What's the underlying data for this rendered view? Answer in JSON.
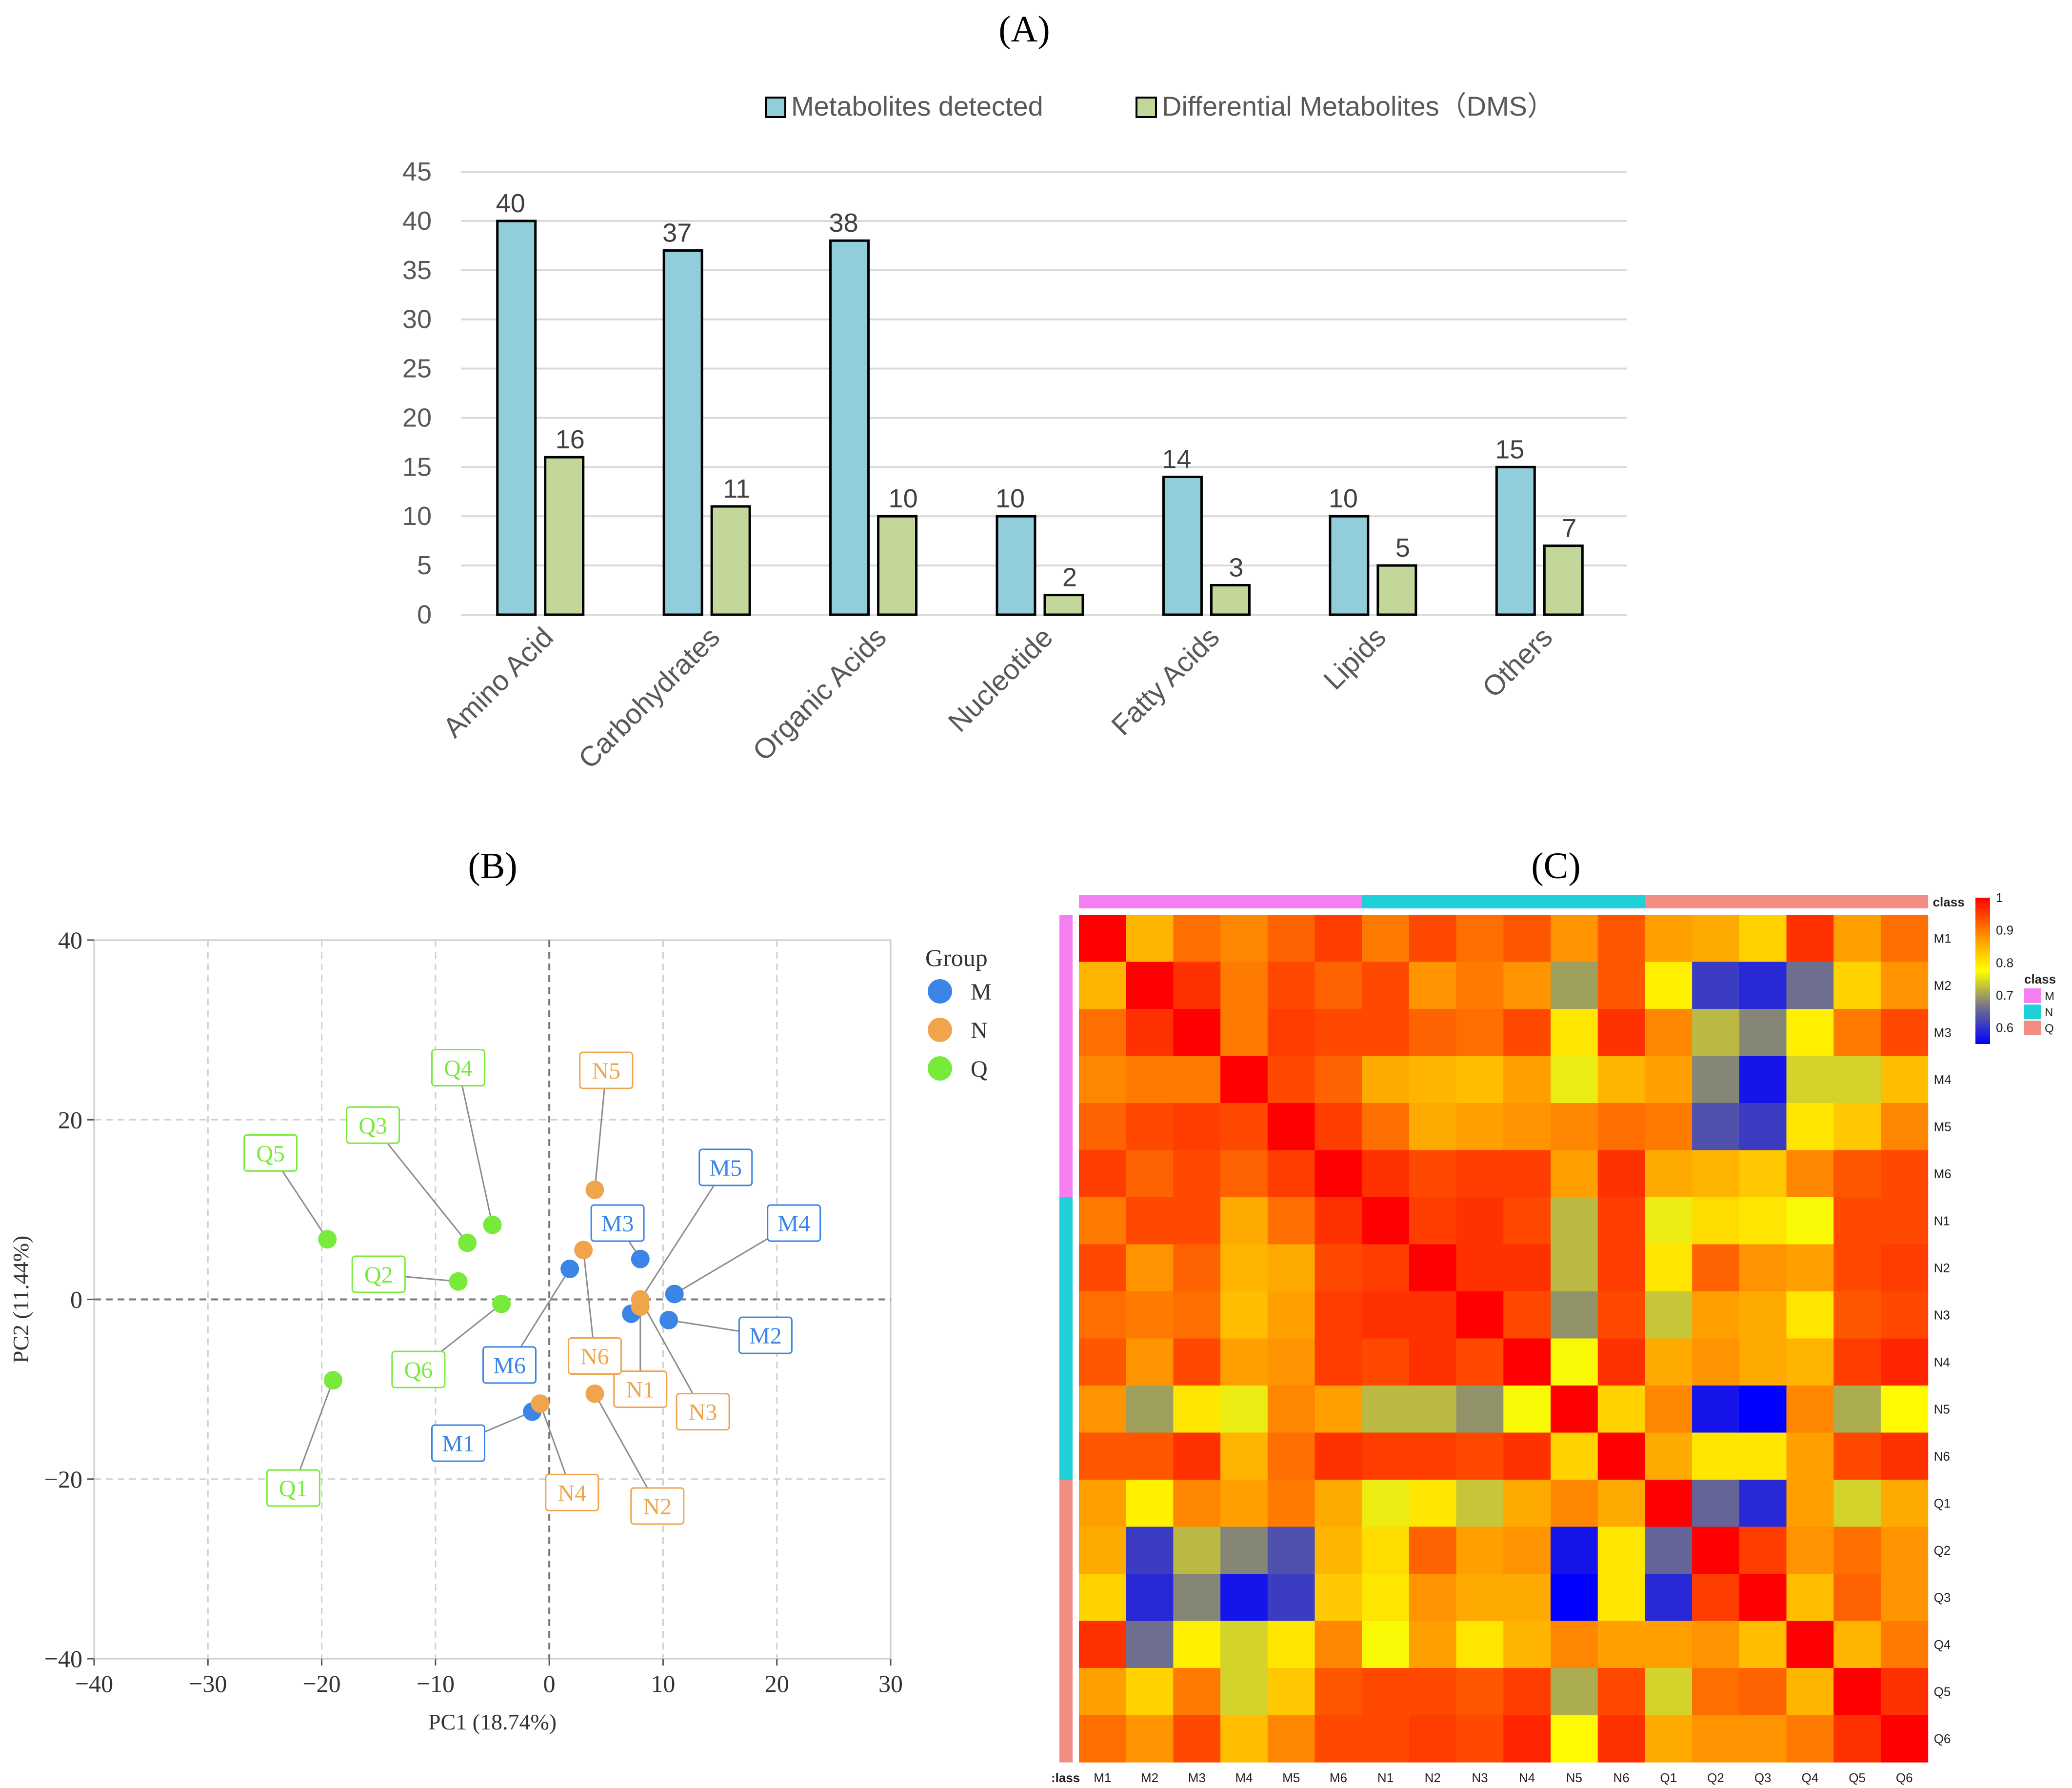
{
  "panels": {
    "a": "(A)",
    "b": "(B)",
    "c": "(C)"
  },
  "chart_data": [
    {
      "type": "bar",
      "panel": "(A)",
      "categories": [
        "Amino Acid",
        "Carbohydrates",
        "Organic Acids",
        "Nucleotide",
        "Fatty Acids",
        "Lipids",
        "Others"
      ],
      "series": [
        {
          "name": "Metabolites detected",
          "values": [
            40,
            37,
            38,
            10,
            14,
            10,
            15
          ],
          "color": "#92cddc"
        },
        {
          "name": "Differential Metabolites（DMS）",
          "values": [
            16,
            11,
            10,
            2,
            3,
            5,
            7
          ],
          "color": "#c4d79b"
        }
      ],
      "yticks": [
        "0",
        "5",
        "10",
        "15",
        "20",
        "25",
        "30",
        "35",
        "40",
        "45"
      ],
      "ylim": [
        0,
        45
      ],
      "grid": true,
      "legend": "top-right",
      "data_labels": true
    },
    {
      "type": "scatter",
      "panel": "(B)",
      "xlabel": "PC1 (18.74%)",
      "ylabel": "PC2 (11.44%)",
      "xlim": [
        -40,
        30
      ],
      "ylim": [
        -40,
        40
      ],
      "xticks": [
        "−40",
        "−30",
        "−20",
        "−10",
        "0",
        "10",
        "20",
        "30"
      ],
      "yticks": [
        "−40",
        "−20",
        "0",
        "20",
        "40"
      ],
      "legend_title": "Group",
      "legend": "right",
      "groups": [
        {
          "name": "M",
          "color": "#3a85e6"
        },
        {
          "name": "N",
          "color": "#f0a44c"
        },
        {
          "name": "Q",
          "color": "#77ea3a"
        }
      ],
      "points": [
        {
          "label": "M1",
          "group": "M",
          "x": -1.5,
          "y": -12.5,
          "lx": -8,
          "ly": -16
        },
        {
          "label": "M2",
          "group": "M",
          "x": 10.5,
          "y": -2.3,
          "lx": 19,
          "ly": -4
        },
        {
          "label": "M3",
          "group": "M",
          "x": 8.0,
          "y": 4.5,
          "lx": 6,
          "ly": 8.5
        },
        {
          "label": "M4",
          "group": "M",
          "x": 11.0,
          "y": 0.6,
          "lx": 21.5,
          "ly": 8.5
        },
        {
          "label": "M5",
          "group": "M",
          "x": 7.2,
          "y": -1.6,
          "lx": 15.5,
          "ly": 14.7
        },
        {
          "label": "M6",
          "group": "M",
          "x": 1.8,
          "y": 3.4,
          "lx": -3.5,
          "ly": -7.3
        },
        {
          "label": "N1",
          "group": "N",
          "x": 8.0,
          "y": -0.8,
          "lx": 8,
          "ly": -10
        },
        {
          "label": "N2",
          "group": "N",
          "x": 4.0,
          "y": -10.5,
          "lx": 9.5,
          "ly": -23
        },
        {
          "label": "N3",
          "group": "N",
          "x": 8.0,
          "y": 0.0,
          "lx": 13.5,
          "ly": -12.5
        },
        {
          "label": "N4",
          "group": "N",
          "x": -0.8,
          "y": -11.6,
          "lx": 2,
          "ly": -21.5
        },
        {
          "label": "N5",
          "group": "N",
          "x": 4.0,
          "y": 12.2,
          "lx": 5,
          "ly": 25.5
        },
        {
          "label": "N6",
          "group": "N",
          "x": 3.0,
          "y": 5.5,
          "lx": 4,
          "ly": -6.3
        },
        {
          "label": "Q1",
          "group": "Q",
          "x": -19.0,
          "y": -9.0,
          "lx": -22.5,
          "ly": -21
        },
        {
          "label": "Q2",
          "group": "Q",
          "x": -8.0,
          "y": 2.0,
          "lx": -15,
          "ly": 2.8
        },
        {
          "label": "Q3",
          "group": "Q",
          "x": -7.2,
          "y": 6.3,
          "lx": -15.5,
          "ly": 19.4
        },
        {
          "label": "Q4",
          "group": "Q",
          "x": -5.0,
          "y": 8.3,
          "lx": -8,
          "ly": 25.8
        },
        {
          "label": "Q5",
          "group": "Q",
          "x": -19.5,
          "y": 6.7,
          "lx": -24.5,
          "ly": 16.3
        },
        {
          "label": "Q6",
          "group": "Q",
          "x": -4.2,
          "y": -0.5,
          "lx": -11.5,
          "ly": -7.8
        }
      ]
    },
    {
      "type": "heatmap",
      "panel": "(C)",
      "labels": [
        "M1",
        "M2",
        "M3",
        "M4",
        "M5",
        "M6",
        "N1",
        "N2",
        "N3",
        "N4",
        "N5",
        "N6",
        "Q1",
        "Q2",
        "Q3",
        "Q4",
        "Q5",
        "Q6"
      ],
      "class_groups": [
        "M",
        "M",
        "M",
        "M",
        "M",
        "M",
        "N",
        "N",
        "N",
        "N",
        "N",
        "N",
        "Q",
        "Q",
        "Q",
        "Q",
        "Q",
        "Q"
      ],
      "class_colors": {
        "M": "#f57ff1",
        "N": "#1fd0d8",
        "Q": "#f38c83"
      },
      "class_title": "class",
      "class_axis_label": ":lass",
      "legend_title": "class",
      "colorbar_ticks": [
        "1",
        "0.9",
        "0.8",
        "0.7",
        "0.6"
      ],
      "colorbar_range": [
        0.55,
        1.0
      ],
      "matrix": [
        [
          1.0,
          0.85,
          0.91,
          0.89,
          0.92,
          0.95,
          0.9,
          0.94,
          0.91,
          0.93,
          0.88,
          0.93,
          0.87,
          0.86,
          0.82,
          0.96,
          0.87,
          0.91
        ],
        [
          0.85,
          1.0,
          0.96,
          0.9,
          0.94,
          0.92,
          0.94,
          0.88,
          0.9,
          0.88,
          0.7,
          0.93,
          0.79,
          0.61,
          0.59,
          0.66,
          0.82,
          0.88
        ],
        [
          0.91,
          0.96,
          1.0,
          0.9,
          0.95,
          0.94,
          0.94,
          0.92,
          0.91,
          0.94,
          0.8,
          0.96,
          0.89,
          0.72,
          0.68,
          0.79,
          0.9,
          0.94
        ],
        [
          0.89,
          0.9,
          0.9,
          1.0,
          0.94,
          0.92,
          0.86,
          0.85,
          0.84,
          0.87,
          0.76,
          0.85,
          0.87,
          0.68,
          0.57,
          0.74,
          0.74,
          0.84
        ],
        [
          0.92,
          0.94,
          0.95,
          0.94,
          1.0,
          0.95,
          0.91,
          0.86,
          0.87,
          0.88,
          0.89,
          0.91,
          0.9,
          0.63,
          0.61,
          0.8,
          0.83,
          0.89
        ],
        [
          0.95,
          0.92,
          0.94,
          0.92,
          0.95,
          1.0,
          0.96,
          0.94,
          0.95,
          0.95,
          0.87,
          0.96,
          0.86,
          0.85,
          0.83,
          0.89,
          0.93,
          0.94
        ],
        [
          0.9,
          0.94,
          0.94,
          0.86,
          0.91,
          0.96,
          1.0,
          0.95,
          0.96,
          0.94,
          0.72,
          0.95,
          0.76,
          0.81,
          0.8,
          0.77,
          0.94,
          0.94
        ],
        [
          0.94,
          0.88,
          0.92,
          0.85,
          0.86,
          0.94,
          0.95,
          1.0,
          0.96,
          0.96,
          0.72,
          0.95,
          0.8,
          0.92,
          0.88,
          0.87,
          0.94,
          0.95
        ],
        [
          0.91,
          0.9,
          0.91,
          0.84,
          0.87,
          0.95,
          0.96,
          0.96,
          1.0,
          0.94,
          0.69,
          0.94,
          0.73,
          0.87,
          0.86,
          0.8,
          0.93,
          0.94
        ],
        [
          0.93,
          0.88,
          0.94,
          0.87,
          0.88,
          0.95,
          0.94,
          0.96,
          0.94,
          1.0,
          0.77,
          0.96,
          0.86,
          0.88,
          0.86,
          0.85,
          0.95,
          0.97
        ],
        [
          0.88,
          0.7,
          0.8,
          0.76,
          0.89,
          0.87,
          0.72,
          0.72,
          0.69,
          0.77,
          1.0,
          0.82,
          0.89,
          0.57,
          0.55,
          0.89,
          0.71,
          0.78
        ],
        [
          0.93,
          0.93,
          0.96,
          0.85,
          0.91,
          0.96,
          0.95,
          0.95,
          0.94,
          0.96,
          0.82,
          1.0,
          0.86,
          0.8,
          0.8,
          0.87,
          0.94,
          0.96
        ],
        [
          0.87,
          0.79,
          0.89,
          0.87,
          0.9,
          0.86,
          0.76,
          0.8,
          0.73,
          0.86,
          0.89,
          0.86,
          1.0,
          0.65,
          0.59,
          0.87,
          0.74,
          0.86
        ],
        [
          0.86,
          0.61,
          0.72,
          0.68,
          0.63,
          0.85,
          0.81,
          0.92,
          0.87,
          0.88,
          0.57,
          0.8,
          0.65,
          1.0,
          0.95,
          0.88,
          0.91,
          0.88
        ],
        [
          0.82,
          0.59,
          0.68,
          0.57,
          0.61,
          0.83,
          0.8,
          0.88,
          0.86,
          0.86,
          0.55,
          0.8,
          0.59,
          0.95,
          1.0,
          0.84,
          0.92,
          0.88
        ],
        [
          0.96,
          0.66,
          0.79,
          0.74,
          0.8,
          0.89,
          0.77,
          0.87,
          0.8,
          0.85,
          0.89,
          0.87,
          0.87,
          0.88,
          0.84,
          1.0,
          0.85,
          0.9
        ],
        [
          0.87,
          0.82,
          0.9,
          0.74,
          0.83,
          0.93,
          0.94,
          0.94,
          0.93,
          0.95,
          0.71,
          0.94,
          0.74,
          0.91,
          0.92,
          0.85,
          1.0,
          0.96
        ],
        [
          0.91,
          0.88,
          0.94,
          0.84,
          0.89,
          0.94,
          0.94,
          0.95,
          0.94,
          0.97,
          0.78,
          0.96,
          0.86,
          0.88,
          0.88,
          0.9,
          0.96,
          1.0
        ]
      ]
    }
  ]
}
